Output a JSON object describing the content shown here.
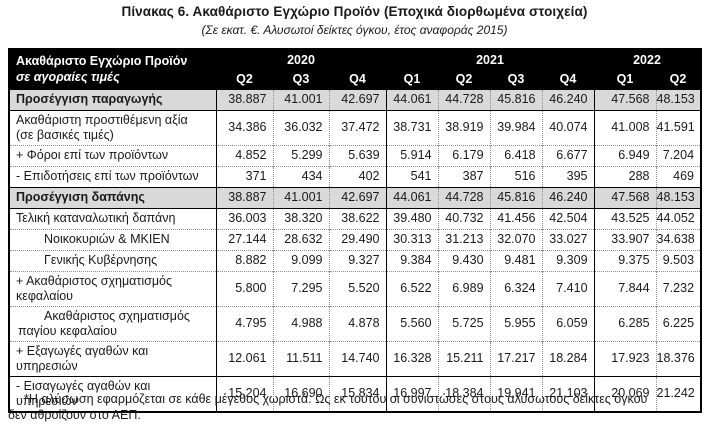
{
  "page": {
    "title": "Πίνακας 6. Ακαθάριστο Εγχώριο Προϊόν (Εποχικά διορθωμένα στοιχεία)",
    "subtitle": "(Σε εκατ. €. Αλυσωτοί δείκτες όγκου, έτος αναφοράς 2015)",
    "footnote": "*Η αλύσωση εφαρμόζεται σε κάθε μέγεθος χωριστά. Ως εκ τούτου οι συνιστώσες στους αλυσωτούς δείκτες όγκου\nδεν αθροίζουν στο ΑΕΠ."
  },
  "colors": {
    "header_bg": "#000000",
    "header_text": "#ffffff",
    "band_bg": "#d9d9d9",
    "dotted_border": "#8f8f8f",
    "solid_border": "#000000"
  },
  "table": {
    "header": {
      "label_line1": "Ακαθάριστο Εγχώριο Προϊόν",
      "label_line2": "σε αγοραίες τιμές",
      "year_groups": [
        {
          "year": "2020",
          "quarters": [
            "Q2",
            "Q3",
            "Q4"
          ]
        },
        {
          "year": "2021",
          "quarters": [
            "Q1",
            "Q2",
            "Q3",
            "Q4"
          ]
        },
        {
          "year": "2022",
          "quarters": [
            "Q1",
            "Q2"
          ]
        }
      ]
    },
    "rows": [
      {
        "label": "Προσέγγιση παραγωγής",
        "kind": "section",
        "values": [
          "38.887",
          "41.001",
          "42.697",
          "44.061",
          "44.728",
          "45.816",
          "46.240",
          "47.568",
          "48.153"
        ]
      },
      {
        "label": "Ακαθάριστη προστιθέμενη αξία\n(σε βασικές τιμές)",
        "kind": "item",
        "values": [
          "34.386",
          "36.032",
          "37.472",
          "38.731",
          "38.919",
          "39.984",
          "40.074",
          "41.008",
          "41.591"
        ]
      },
      {
        "label": "+ Φόροι επί των προϊόντων",
        "kind": "item",
        "values": [
          "4.852",
          "5.299",
          "5.639",
          "5.914",
          "6.179",
          "6.418",
          "6.677",
          "6.949",
          "7.204"
        ]
      },
      {
        "label": "- Επιδοτήσεις επί των προϊόντων",
        "kind": "item",
        "values": [
          "371",
          "434",
          "402",
          "541",
          "387",
          "516",
          "395",
          "288",
          "469"
        ]
      },
      {
        "label": "Προσέγγιση δαπάνης",
        "kind": "section",
        "values": [
          "38.887",
          "41.001",
          "42.697",
          "44.061",
          "44.728",
          "45.816",
          "46.240",
          "47.568",
          "48.153"
        ]
      },
      {
        "label": "Τελική καταναλωτική δαπάνη",
        "kind": "item",
        "values": [
          "36.003",
          "38.320",
          "38.622",
          "39.480",
          "40.732",
          "41.456",
          "42.504",
          "43.525",
          "44.052"
        ]
      },
      {
        "label": "Νοικοκυριών & ΜΚΙΕΝ",
        "kind": "sub",
        "values": [
          "27.144",
          "28.632",
          "29.490",
          "30.313",
          "31.213",
          "32.070",
          "33.027",
          "33.907",
          "34.638"
        ]
      },
      {
        "label": "Γενικής Κυβέρνησης",
        "kind": "sub",
        "values": [
          "8.882",
          "9.099",
          "9.327",
          "9.384",
          "9.430",
          "9.481",
          "9.309",
          "9.375",
          "9.503"
        ]
      },
      {
        "label": "+ Ακαθάριστος σχηματισμός\nκεφαλαίου",
        "kind": "item",
        "values": [
          "5.800",
          "7.295",
          "5.520",
          "6.522",
          "6.989",
          "6.324",
          "7.410",
          "7.844",
          "7.232"
        ]
      },
      {
        "label": "Ακαθάριστος σχηματισμός\nπαγίου κεφαλαίου",
        "kind": "subhang",
        "values": [
          "4.795",
          "4.988",
          "4.878",
          "5.560",
          "5.725",
          "5.955",
          "6.059",
          "6.285",
          "6.225"
        ]
      },
      {
        "label": "+ Εξαγωγές αγαθών και υπηρεσιών",
        "kind": "item",
        "values": [
          "12.061",
          "11.511",
          "14.740",
          "16.328",
          "15.211",
          "17.217",
          "18.284",
          "17.923",
          "18.376"
        ]
      },
      {
        "label": "- Εισαγωγές αγαθών και υπηρεσιών",
        "kind": "item",
        "sep_top": "solid",
        "values": [
          "15.204",
          "16.690",
          "15.834",
          "16.997",
          "18.384",
          "19.941",
          "21.103",
          "20.069",
          "21.242"
        ]
      }
    ]
  }
}
